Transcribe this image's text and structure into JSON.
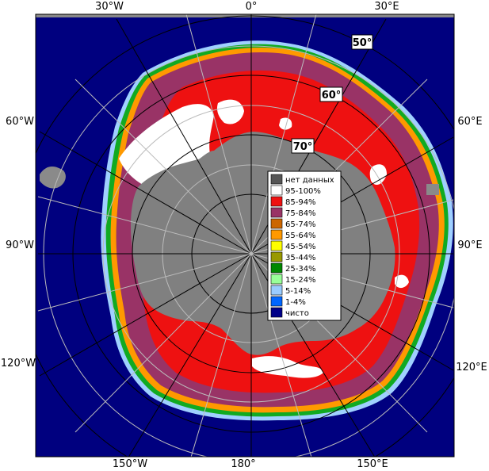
{
  "map": {
    "lon_labels": {
      "top_30w": "30°W",
      "top_0": "0°",
      "top_30e": "30°E",
      "left_60w": "60°W",
      "left_90w": "90°W",
      "left_120w": "120°W",
      "right_60e": "60°E",
      "right_90e": "90°E",
      "right_120e": "120°E",
      "bottom_150w": "150°W",
      "bottom_180": "180°",
      "bottom_150e": "150°E"
    },
    "lat_labels": {
      "lat_50": "50°",
      "lat_60": "60°",
      "lat_70": "70°"
    },
    "colors": {
      "open_water": "#00007f",
      "land": "#7f7f7f",
      "no_data": "#555555",
      "ice_95_100": "#ffffff",
      "ice_85_94": "#ff0000",
      "ice_75_84": "#993366"
    }
  },
  "legend": {
    "items": [
      {
        "label": "нет данных",
        "color": "#555555"
      },
      {
        "label": "95-100%",
        "color": "#ffffff"
      },
      {
        "label": "85-94%",
        "color": "#ee1111"
      },
      {
        "label": "75-84%",
        "color": "#993366"
      },
      {
        "label": "65-74%",
        "color": "#cc6600"
      },
      {
        "label": "55-64%",
        "color": "#ff9900"
      },
      {
        "label": "45-54%",
        "color": "#ffff00"
      },
      {
        "label": "35-44%",
        "color": "#999900"
      },
      {
        "label": "25-34%",
        "color": "#008800"
      },
      {
        "label": "15-24%",
        "color": "#99ff99"
      },
      {
        "label": "5-14%",
        "color": "#99ccff"
      },
      {
        "label": "1-4%",
        "color": "#0066ff"
      },
      {
        "label": "чисто",
        "color": "#000088"
      }
    ]
  }
}
